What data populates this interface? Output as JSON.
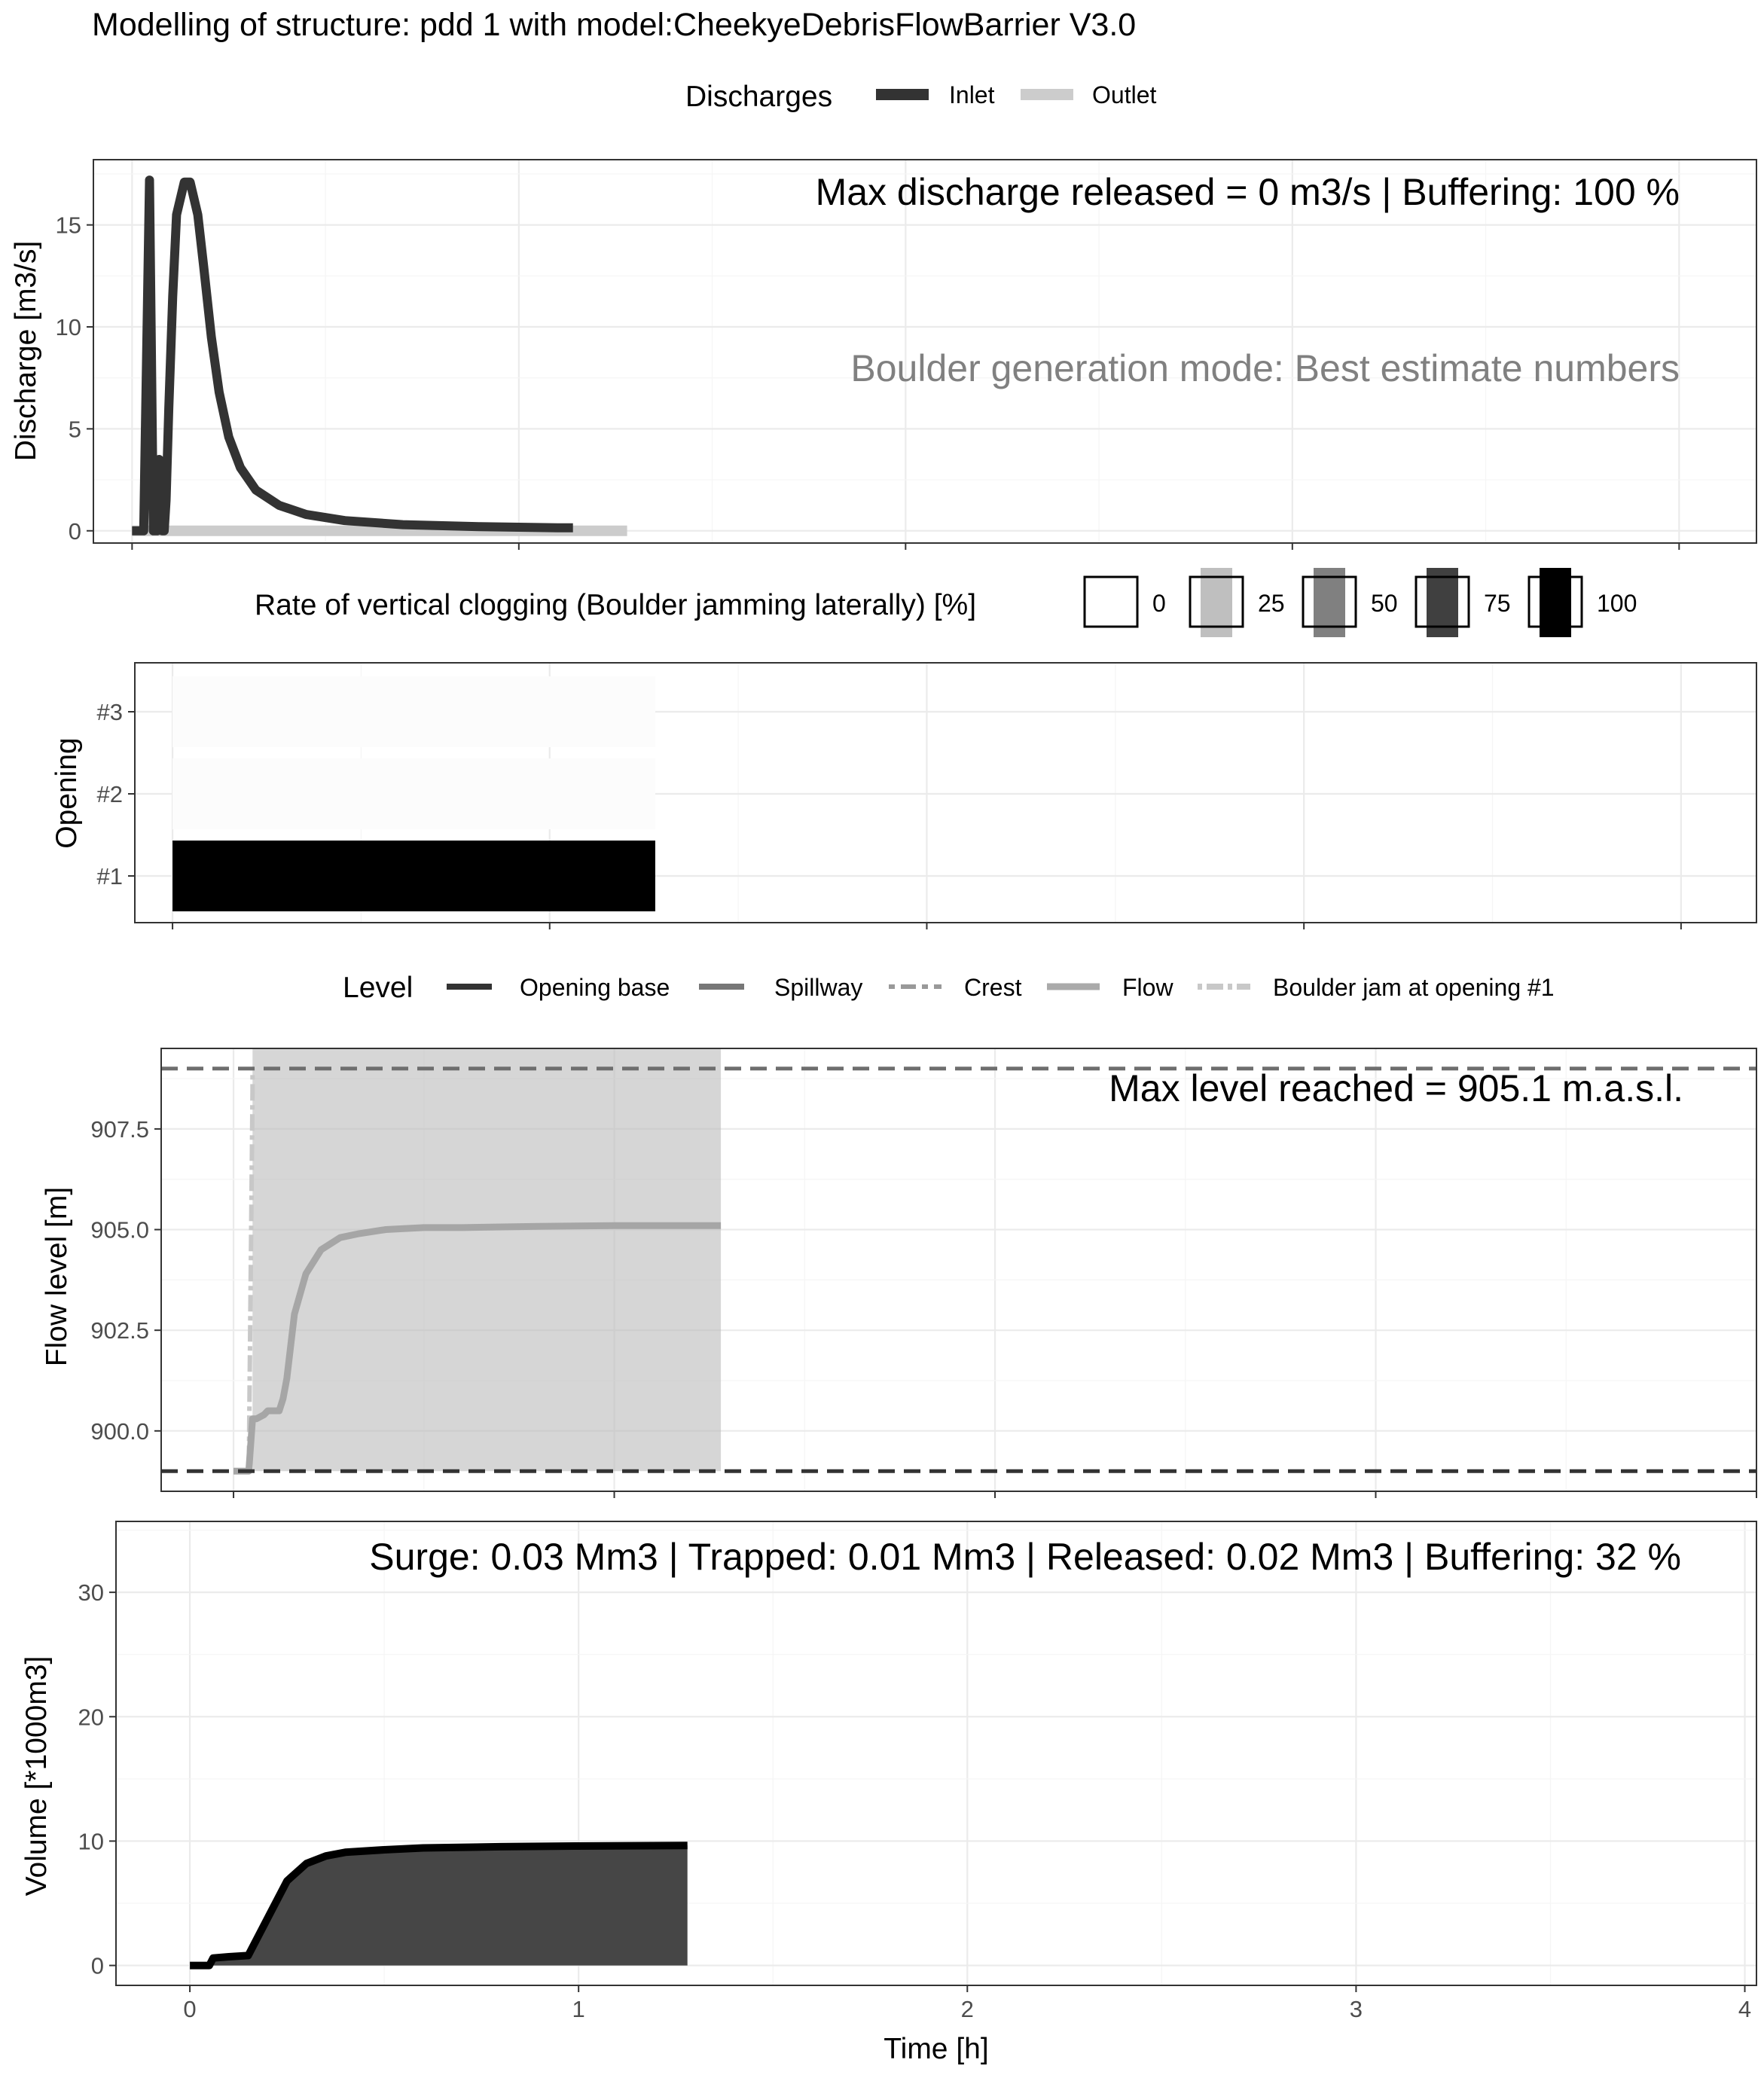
{
  "title": "Modelling of structure: pdd 1 with model:CheekyeDebrisFlowBarrier V3.0",
  "legends": {
    "discharges": {
      "title": "Discharges",
      "items": [
        {
          "label": "Inlet",
          "color": "#333333"
        },
        {
          "label": "Outlet",
          "color": "#cccccc"
        }
      ]
    },
    "clogging": {
      "title": "Rate of vertical clogging (Boulder jamming laterally) [%]",
      "items": [
        {
          "label": "0",
          "fill": "#ffffff"
        },
        {
          "label": "25",
          "fill": "#bfbfbf"
        },
        {
          "label": "50",
          "fill": "#808080"
        },
        {
          "label": "75",
          "fill": "#404040"
        },
        {
          "label": "100",
          "fill": "#000000"
        }
      ]
    },
    "level": {
      "title": "Level",
      "items": [
        {
          "label": "Opening base",
          "color": "#333333"
        },
        {
          "label": "Spillway",
          "color": "#777777"
        },
        {
          "label": "Crest",
          "color": "#999999"
        },
        {
          "label": "Flow",
          "color": "#aaaaaa"
        },
        {
          "label": "Boulder jam at opening #1",
          "color": "#c8c8c8"
        }
      ]
    }
  },
  "chart_data": [
    {
      "type": "line",
      "ylabel": "Discharge [m3/s]",
      "xlim": [
        -0.1,
        4.2
      ],
      "ylim": [
        -0.6,
        18.2
      ],
      "yticks": [
        0,
        5,
        10,
        15
      ],
      "annotations": [
        "Max discharge released = 0 m3/s | Buffering: 100 %",
        "Boulder generation mode: Best estimate numbers"
      ],
      "series": [
        {
          "name": "Inlet",
          "color": "#333333",
          "x": [
            0,
            0.03,
            0.045,
            0.055,
            0.065,
            0.07,
            0.078,
            0.083,
            0.088,
            0.095,
            0.105,
            0.115,
            0.135,
            0.15,
            0.17,
            0.185,
            0.205,
            0.225,
            0.25,
            0.28,
            0.32,
            0.38,
            0.45,
            0.55,
            0.7,
            0.9,
            1.1,
            1.14
          ],
          "y": [
            0,
            0,
            17.2,
            0,
            0,
            3.5,
            0,
            0,
            1.5,
            6,
            11.5,
            15.5,
            17.1,
            17.1,
            15.5,
            13,
            9.5,
            6.8,
            4.6,
            3.1,
            2.0,
            1.25,
            0.8,
            0.5,
            0.3,
            0.2,
            0.15,
            0.15
          ]
        },
        {
          "name": "Outlet",
          "color": "#cccccc",
          "x": [
            0,
            1.28
          ],
          "y": [
            0,
            0
          ]
        }
      ]
    },
    {
      "type": "heatmap",
      "ylabel": "Opening",
      "xlim": [
        -0.1,
        4.2
      ],
      "categories": [
        "#1",
        "#2",
        "#3"
      ],
      "rows": [
        {
          "opening": "#1",
          "x_start": 0.0,
          "x_end": 1.28,
          "clogging_percent": 100
        },
        {
          "opening": "#2",
          "x_start": 0.0,
          "x_end": 1.28,
          "clogging_percent": 0
        },
        {
          "opening": "#3",
          "x_start": 0.0,
          "x_end": 1.28,
          "clogging_percent": 0
        }
      ]
    },
    {
      "type": "line",
      "ylabel": "Flow level [m]",
      "xlim": [
        -0.19,
        4.0
      ],
      "ylim": [
        898.5,
        909.5
      ],
      "yticks": [
        900.0,
        902.5,
        905.0,
        907.5
      ],
      "yticklabels": [
        "900.0",
        "902.5",
        "905.0",
        "907.5"
      ],
      "annotations": [
        "Max level reached = 905.1 m.a.s.l."
      ],
      "shaded_interval": [
        0.05,
        1.28
      ],
      "hlines": [
        {
          "name": "Opening base",
          "y": 899.0
        },
        {
          "name": "Spillway",
          "y": 909.0
        }
      ],
      "boulder_jam": {
        "name": "Boulder jam at opening #1",
        "x": [
          0.04,
          0.05,
          0.05
        ],
        "y": [
          899.0,
          908.5,
          909.0
        ]
      },
      "series": [
        {
          "name": "Flow",
          "color": "#a6a6a6",
          "x": [
            0,
            0.04,
            0.05,
            0.06,
            0.08,
            0.09,
            0.12,
            0.13,
            0.14,
            0.16,
            0.19,
            0.23,
            0.28,
            0.33,
            0.4,
            0.5,
            0.6,
            0.8,
            1.0,
            1.28
          ],
          "y": [
            899.0,
            899.0,
            900.3,
            900.3,
            900.4,
            900.5,
            900.5,
            900.8,
            901.3,
            902.9,
            903.9,
            904.5,
            904.8,
            904.9,
            905.0,
            905.05,
            905.05,
            905.08,
            905.1,
            905.1
          ]
        }
      ]
    },
    {
      "type": "area",
      "xlabel": "Time [h]",
      "ylabel": "Volume [*1000m3]",
      "xlim": [
        -0.19,
        4.03
      ],
      "ylim": [
        -1.6,
        35.7
      ],
      "xticks": [
        0,
        1,
        2,
        3,
        4
      ],
      "yticks": [
        0,
        10,
        20,
        30
      ],
      "annotations": [
        "Surge: 0.03 Mm3 | Trapped: 0.01 Mm3 | Released: 0.02 Mm3 | Buffering: 32 %"
      ],
      "series": [
        {
          "name": "Volume",
          "color": "#000000",
          "fill": "#464646",
          "x": [
            0,
            0.05,
            0.06,
            0.1,
            0.15,
            0.2,
            0.25,
            0.3,
            0.35,
            0.4,
            0.5,
            0.6,
            0.8,
            1.0,
            1.28
          ],
          "y": [
            0,
            0,
            0.6,
            0.7,
            0.8,
            3.8,
            6.8,
            8.2,
            8.8,
            9.1,
            9.3,
            9.45,
            9.55,
            9.6,
            9.65
          ]
        }
      ]
    }
  ]
}
